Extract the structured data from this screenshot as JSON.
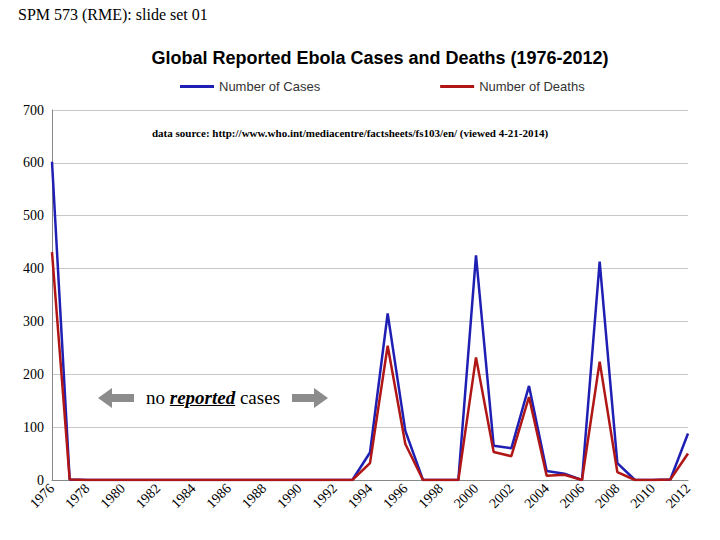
{
  "header": "SPM 573 (RME): slide set 01",
  "chart_data": {
    "type": "line",
    "title": "Global Reported Ebola Cases and Deaths (1976-2012)",
    "annotations": [
      "data source: http://www.who.int/mediacentre/factsheets/fs103/en/ (viewed 4-21-2014)",
      "no reported cases"
    ],
    "categories": [
      "1976",
      null,
      "1978",
      null,
      "1980",
      null,
      "1982",
      null,
      "1984",
      null,
      "1986",
      null,
      "1988",
      null,
      "1990",
      null,
      "1992",
      null,
      "1994",
      null,
      "1996",
      null,
      "1998",
      null,
      "2000",
      null,
      "2002",
      null,
      "2004",
      null,
      "2006",
      null,
      "2008",
      null,
      "2010",
      null,
      "2012"
    ],
    "series": [
      {
        "name": "Number of Cases",
        "color": "#1f1fb4",
        "values": [
          602,
          1,
          0,
          0,
          0,
          0,
          0,
          0,
          0,
          0,
          0,
          0,
          0,
          0,
          0,
          0,
          0,
          0,
          52,
          315,
          93,
          0,
          0,
          0,
          425,
          65,
          60,
          178,
          17,
          12,
          0,
          413,
          32,
          0,
          0,
          1,
          88
        ]
      },
      {
        "name": "Number of Deaths",
        "color": "#b01616",
        "values": [
          431,
          1,
          0,
          0,
          0,
          0,
          0,
          0,
          0,
          0,
          0,
          0,
          0,
          0,
          0,
          0,
          0,
          0,
          32,
          254,
          68,
          0,
          0,
          0,
          232,
          53,
          45,
          157,
          8,
          10,
          0,
          224,
          15,
          0,
          0,
          1,
          50
        ]
      }
    ],
    "ylim": [
      0,
      700
    ],
    "yticks": [
      0,
      100,
      200,
      300,
      400,
      500,
      600,
      700
    ],
    "grid": true,
    "legend": "top"
  }
}
